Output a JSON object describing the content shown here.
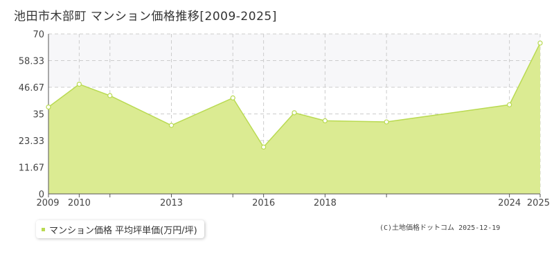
{
  "title": "池田市木部町 マンション価格推移[2009-2025]",
  "legend": {
    "label": "マンション価格 平均坪単価(万円/坪)"
  },
  "copyright": "(C)土地価格ドットコム 2025-12-19",
  "colors": {
    "fill": "#dbeb92",
    "line": "#b9da52",
    "band": "#f7f7f9",
    "grid": "#cccccc"
  },
  "chart_data": {
    "type": "area",
    "title": "池田市木部町 マンション価格推移[2009-2025]",
    "xlabel": "",
    "ylabel": "",
    "xlim": [
      2009,
      2025
    ],
    "ylim": [
      0,
      70
    ],
    "y_ticks": [
      "0",
      "11.67",
      "23.33",
      "35",
      "46.67",
      "58.33",
      "70"
    ],
    "x_ticks": [
      "2009",
      "2010",
      "2013",
      "2016",
      "2018",
      "2024",
      "2025"
    ],
    "x_gridlines": [
      2009,
      2010,
      2011,
      2013,
      2015,
      2016,
      2018,
      2020,
      2024,
      2025
    ],
    "grid": true,
    "legend_position": "bottom-left",
    "series": [
      {
        "name": "マンション価格 平均坪単価(万円/坪)",
        "x": [
          2009,
          2010,
          2011,
          2013,
          2015,
          2016,
          2017,
          2018,
          2020,
          2024,
          2025
        ],
        "values": [
          38,
          48,
          43,
          30,
          42,
          20.5,
          35.5,
          32,
          31.5,
          39,
          66
        ]
      }
    ]
  }
}
